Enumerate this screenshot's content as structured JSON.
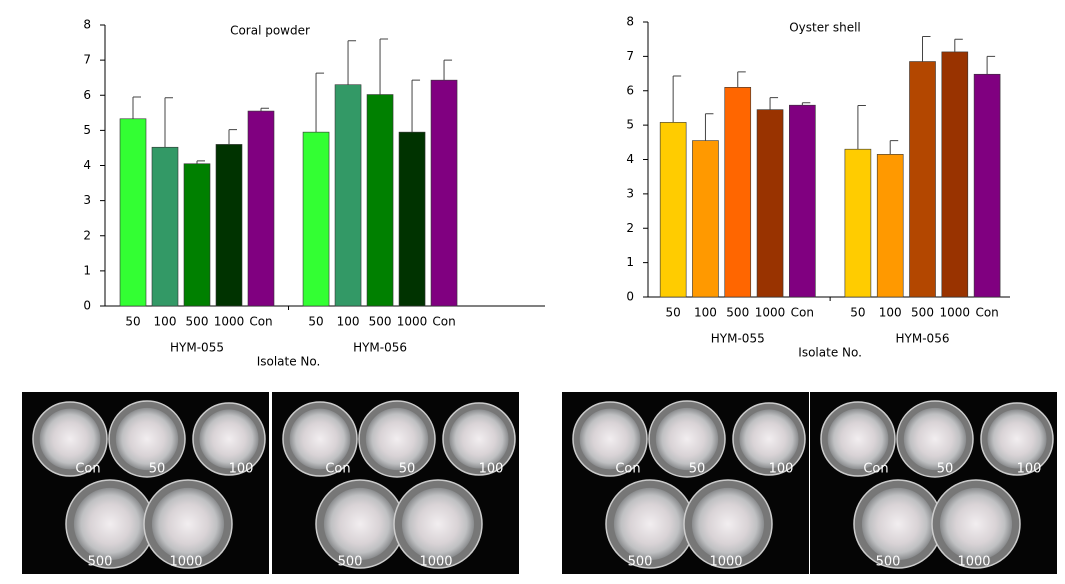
{
  "chart_data": [
    {
      "type": "bar",
      "title": "Coral powder",
      "categories": [
        "50",
        "100",
        "500",
        "1000",
        "Con",
        "50",
        "100",
        "500",
        "1000",
        "Con"
      ],
      "groups": [
        "HYM-055",
        "HYM-056"
      ],
      "xlabel": "Isolate No.",
      "values": [
        5.33,
        4.52,
        4.05,
        4.6,
        5.55,
        4.95,
        6.3,
        6.02,
        4.95,
        6.43
      ],
      "errors": [
        0.62,
        1.41,
        0.08,
        0.42,
        0.08,
        1.68,
        1.25,
        1.58,
        1.48,
        0.57
      ],
      "colors": [
        "#33ff33",
        "#339966",
        "#008000",
        "#003300",
        "#800080",
        "#33ff33",
        "#339966",
        "#008000",
        "#003300",
        "#800080"
      ],
      "ylim": [
        0,
        8
      ],
      "yticks": [
        0,
        1,
        2,
        3,
        4,
        5,
        6,
        7,
        8
      ]
    },
    {
      "type": "bar",
      "title": "Oyster shell",
      "categories": [
        "50",
        "100",
        "500",
        "1000",
        "Con",
        "50",
        "100",
        "500",
        "1000",
        "Con"
      ],
      "groups": [
        "HYM-055",
        "HYM-056"
      ],
      "xlabel": "Isolate No.",
      "values": [
        5.08,
        4.55,
        6.1,
        5.45,
        5.58,
        4.3,
        4.15,
        6.85,
        7.13,
        6.48
      ],
      "errors": [
        1.35,
        0.78,
        0.45,
        0.35,
        0.07,
        1.27,
        0.4,
        0.73,
        0.37,
        0.52
      ],
      "colors": [
        "#ffcc00",
        "#ff9900",
        "#ff6600",
        "#993300",
        "#800080",
        "#ffcc00",
        "#ff9900",
        "#b34700",
        "#993300",
        "#800080"
      ],
      "ylim": [
        0,
        8
      ],
      "yticks": [
        0,
        1,
        2,
        3,
        4,
        5,
        6,
        7,
        8
      ]
    }
  ],
  "photos": [
    {
      "labels": [
        "Con",
        "50",
        "100",
        "500",
        "1000"
      ]
    },
    {
      "labels": [
        "Con",
        "50",
        "100",
        "500",
        "1000"
      ]
    },
    {
      "labels": [
        "Con",
        "50",
        "100",
        "500",
        "1000"
      ]
    },
    {
      "labels": [
        "Con",
        "50",
        "100",
        "500",
        "1000"
      ]
    }
  ]
}
